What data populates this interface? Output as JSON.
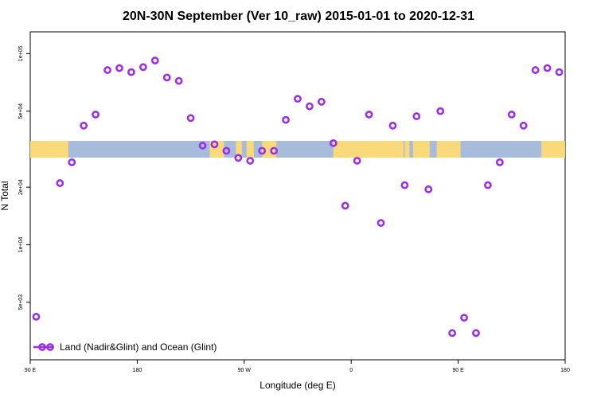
{
  "chart_data": {
    "type": "scatter",
    "title": "20N-30N September (Ver 10_raw)   2015-01-01 to 2020-12-31",
    "xlabel": "Longitude (deg E)",
    "ylabel": "N Total",
    "x_ticks": [
      {
        "value": 90,
        "label": "90 E"
      },
      {
        "value": 180,
        "label": "180"
      },
      {
        "value": 270,
        "label": "90 W"
      },
      {
        "value": 360,
        "label": "0"
      },
      {
        "value": 450,
        "label": "90 E"
      },
      {
        "value": 540,
        "label": "180"
      }
    ],
    "y_ticks": [
      {
        "value": 5000,
        "label": "5e+03"
      },
      {
        "value": 10000,
        "label": "1e+04"
      },
      {
        "value": 20000,
        "label": "2e+04"
      },
      {
        "value": 50000,
        "label": "5e+04"
      },
      {
        "value": 100000,
        "label": "1e+05"
      }
    ],
    "xlim": [
      90,
      540
    ],
    "ylim": [
      2500,
      130000
    ],
    "y_scale": "log",
    "grid": false,
    "legend_position": "bottom-left",
    "band": {
      "description": "world map strip 20N-30N",
      "ocean_color": "#a7bcdb",
      "land_color": "#fad97a"
    },
    "series": [
      {
        "name": "Land (Nadir&Glint) and Ocean (Glint)",
        "color": "#9b30e8",
        "marker": "open-circle",
        "x": [
          95,
          115,
          125,
          135,
          145,
          155,
          165,
          175,
          185,
          195,
          205,
          215,
          225,
          235,
          245,
          255,
          265,
          275,
          285,
          295,
          305,
          315,
          325,
          335,
          345,
          355,
          365,
          375,
          385,
          395,
          405,
          415,
          425,
          435,
          445,
          455,
          465,
          475,
          485,
          495,
          505,
          515,
          525,
          535
        ],
        "y": [
          4200,
          21000,
          27000,
          42000,
          48000,
          82000,
          84000,
          80000,
          85000,
          92000,
          75000,
          72000,
          46000,
          33000,
          33500,
          31000,
          28500,
          27500,
          31000,
          31000,
          45000,
          58000,
          53000,
          56000,
          34000,
          16000,
          27500,
          48000,
          13000,
          42000,
          20500,
          47000,
          19500,
          50000,
          3450,
          4150,
          3450,
          20500,
          27000,
          48000,
          42000,
          82000,
          84000,
          80000
        ]
      }
    ]
  }
}
